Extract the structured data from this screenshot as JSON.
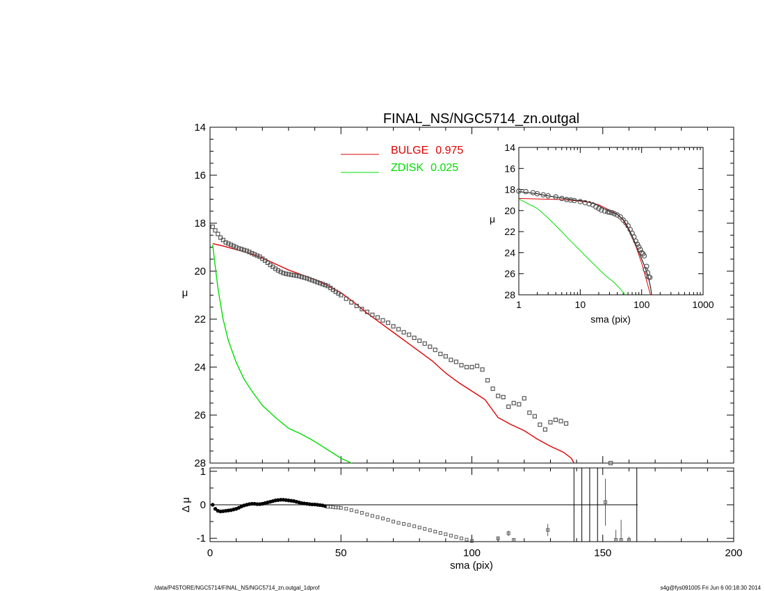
{
  "title": "FINAL_NS/NGC5714_zn.outgal",
  "footer": {
    "left": "/data/P4STORE/NGC5714/FINAL_NS/NGC5714_zn.outgal_1dprof",
    "right": "s4g@fys091005  Fri Jun  6 00:18:30 2014"
  },
  "colors": {
    "bulge": "#dd0000",
    "zdisk": "#00dd00",
    "data": "#555555",
    "axis": "#000000"
  },
  "chart_data": [
    {
      "panel": "main",
      "type": "line",
      "xlabel": "",
      "ylabel": "μ",
      "xlim": [
        0,
        200
      ],
      "ylim": [
        28,
        14
      ],
      "y_inverted": true,
      "yticks": [
        14,
        16,
        18,
        20,
        22,
        24,
        26,
        28
      ],
      "legend": {
        "placement": "top-center",
        "entries": [
          {
            "label": "BULGE",
            "value": "0.975",
            "color": "#dd0000"
          },
          {
            "label": "ZDISK",
            "value": "0.025",
            "color": "#00dd00"
          }
        ]
      },
      "series": [
        {
          "name": "BULGE",
          "color": "#dd0000",
          "style": "line",
          "x": [
            1,
            5,
            10,
            15,
            20,
            25,
            30,
            35,
            40,
            45,
            50,
            55,
            60,
            65,
            70,
            75,
            80,
            85,
            90,
            95,
            100,
            105,
            110,
            115,
            120,
            125,
            130,
            135,
            138,
            139
          ],
          "y": [
            18.85,
            18.95,
            19.1,
            19.25,
            19.45,
            19.7,
            19.95,
            20.15,
            20.35,
            20.6,
            20.9,
            21.3,
            21.75,
            22.15,
            22.55,
            22.95,
            23.35,
            23.75,
            24.25,
            24.65,
            25.0,
            25.35,
            26.1,
            26.4,
            26.65,
            27.0,
            27.3,
            27.55,
            27.8,
            28.0
          ]
        },
        {
          "name": "ZDISK",
          "color": "#00dd00",
          "style": "line",
          "x": [
            1,
            2,
            3,
            5,
            7,
            10,
            13,
            16,
            20,
            25,
            30,
            35,
            40,
            45,
            50,
            54
          ],
          "y": [
            18.9,
            19.8,
            20.7,
            22.0,
            22.9,
            23.8,
            24.5,
            25.0,
            25.6,
            26.1,
            26.55,
            26.8,
            27.1,
            27.45,
            27.8,
            28.0
          ]
        },
        {
          "name": "",
          "color": "#555555",
          "style": "markers",
          "x": [
            1,
            2,
            3,
            4,
            5,
            6,
            7,
            8,
            9,
            10,
            11,
            12,
            13,
            14,
            15,
            16,
            17,
            18,
            19,
            20,
            21,
            22,
            23,
            24,
            25,
            26,
            27,
            28,
            29,
            30,
            31,
            32,
            33,
            34,
            35,
            36,
            37,
            38,
            39,
            40,
            41,
            42,
            43,
            44,
            45,
            46,
            47,
            48,
            49,
            50,
            52,
            54,
            56,
            58,
            60,
            62,
            64,
            66,
            68,
            70,
            72,
            74,
            76,
            78,
            80,
            82,
            84,
            86,
            88,
            90,
            92,
            94,
            96,
            98,
            100,
            102,
            104,
            106,
            108,
            110,
            112,
            114,
            116,
            118,
            120,
            122,
            124,
            126,
            128,
            130,
            132,
            134,
            136,
            153
          ],
          "y": [
            18.15,
            18.3,
            18.45,
            18.6,
            18.7,
            18.8,
            18.85,
            18.9,
            18.95,
            19.0,
            19.05,
            19.08,
            19.12,
            19.15,
            19.2,
            19.25,
            19.3,
            19.35,
            19.4,
            19.48,
            19.56,
            19.65,
            19.74,
            19.82,
            19.9,
            19.97,
            20.03,
            20.08,
            20.11,
            20.13,
            20.15,
            20.17,
            20.19,
            20.21,
            20.24,
            20.27,
            20.3,
            20.34,
            20.38,
            20.42,
            20.46,
            20.5,
            20.54,
            20.58,
            20.62,
            20.7,
            20.78,
            20.86,
            20.93,
            21.0,
            21.15,
            21.3,
            21.45,
            21.58,
            21.7,
            21.82,
            21.93,
            22.05,
            22.15,
            22.3,
            22.42,
            22.55,
            22.65,
            22.78,
            22.9,
            23.02,
            23.15,
            23.28,
            23.45,
            23.55,
            23.7,
            23.78,
            23.92,
            24.0,
            24.0,
            23.95,
            24.1,
            24.55,
            24.9,
            25.2,
            25.25,
            25.65,
            25.5,
            25.55,
            25.3,
            25.9,
            26.05,
            26.4,
            26.6,
            26.3,
            26.2,
            26.25,
            26.35,
            28.0
          ]
        }
      ]
    },
    {
      "panel": "inset",
      "type": "line",
      "xlabel": "sma (pix)",
      "ylabel": "μ",
      "xscale": "log",
      "xlim": [
        1,
        1000
      ],
      "xticks": [
        1,
        10,
        100,
        1000
      ],
      "ylim": [
        28,
        14
      ],
      "y_inverted": true,
      "yticks": [
        14,
        16,
        18,
        20,
        22,
        24,
        26,
        28
      ],
      "series": [
        {
          "name": "BULGE",
          "color": "#dd0000",
          "style": "line",
          "x": [
            1,
            5,
            10,
            15,
            20,
            30,
            40,
            50,
            60,
            80,
            100,
            120,
            139
          ],
          "y": [
            18.85,
            18.95,
            19.1,
            19.25,
            19.45,
            19.95,
            20.35,
            20.9,
            21.75,
            23.35,
            25.0,
            26.65,
            28.0
          ]
        },
        {
          "name": "ZDISK",
          "color": "#00dd00",
          "style": "line",
          "x": [
            1,
            2,
            3,
            5,
            7,
            10,
            16,
            25,
            35,
            45,
            54
          ],
          "y": [
            18.9,
            19.8,
            20.7,
            22.0,
            22.9,
            23.8,
            25.0,
            26.1,
            26.8,
            27.45,
            28.0
          ]
        },
        {
          "name": "",
          "color": "#000000",
          "style": "line",
          "x": [
            1,
            2,
            3,
            5,
            8,
            12,
            18,
            25,
            30,
            40,
            50,
            60,
            70,
            80,
            90,
            100,
            110,
            120,
            130,
            140,
            145
          ],
          "y": [
            18.2,
            18.4,
            18.6,
            18.8,
            19.0,
            19.1,
            19.4,
            19.85,
            20.1,
            20.35,
            20.85,
            21.6,
            22.4,
            23.2,
            23.95,
            24.6,
            25.2,
            25.8,
            26.5,
            27.3,
            28.0
          ]
        },
        {
          "name": "",
          "color": "#555555",
          "style": "markers",
          "x": [
            1,
            1.3,
            1.7,
            2,
            2.5,
            3,
            4,
            5,
            6,
            7,
            8,
            10,
            12,
            14,
            16,
            18,
            20,
            22,
            25,
            28,
            30,
            33,
            36,
            40,
            45,
            50,
            55,
            60,
            65,
            70,
            75,
            80,
            85,
            90,
            95,
            100,
            105,
            110,
            115,
            120,
            125,
            130,
            136
          ],
          "y": [
            18.15,
            18.2,
            18.3,
            18.4,
            18.5,
            18.6,
            18.7,
            18.85,
            18.95,
            19.0,
            19.05,
            19.15,
            19.25,
            19.35,
            19.45,
            19.65,
            19.8,
            19.95,
            20.05,
            20.12,
            20.15,
            20.2,
            20.3,
            20.42,
            20.6,
            20.9,
            21.15,
            21.45,
            21.8,
            22.15,
            22.5,
            22.9,
            23.2,
            23.45,
            23.7,
            24.0,
            24.1,
            24.3,
            25.6,
            25.3,
            25.9,
            26.3,
            26.35
          ]
        }
      ]
    },
    {
      "panel": "residual",
      "type": "scatter",
      "xlabel": "sma (pix)",
      "ylabel": "Δ μ",
      "xlim": [
        0,
        200
      ],
      "xticks": [
        0,
        50,
        100,
        150,
        200
      ],
      "ylim": [
        -1.1,
        1.1
      ],
      "yticks": [
        -1,
        0,
        1
      ],
      "series": [
        {
          "name": "",
          "color": "#000000",
          "style": "markers",
          "x": [
            1,
            2,
            3,
            4,
            5,
            6,
            7,
            8,
            9,
            10,
            11,
            12,
            13,
            14,
            15,
            16,
            17,
            18,
            19,
            20,
            21,
            22,
            23,
            24,
            25,
            26,
            27,
            28,
            29,
            30,
            31,
            32,
            33,
            34,
            35,
            36,
            37,
            38,
            39,
            40,
            41,
            42,
            43,
            44,
            45,
            46,
            47,
            48,
            49,
            50,
            52,
            54,
            56,
            58,
            60,
            62,
            64,
            66,
            68,
            70,
            72,
            74,
            76,
            78,
            80,
            82,
            84,
            86,
            88,
            90,
            92,
            94,
            96,
            98,
            100
          ],
          "y": [
            0.0,
            -0.12,
            -0.18,
            -0.2,
            -0.19,
            -0.18,
            -0.17,
            -0.16,
            -0.14,
            -0.12,
            -0.09,
            -0.05,
            -0.02,
            0.0,
            0.02,
            0.03,
            0.03,
            0.02,
            0.02,
            0.03,
            0.05,
            0.07,
            0.09,
            0.11,
            0.13,
            0.14,
            0.15,
            0.15,
            0.14,
            0.13,
            0.12,
            0.11,
            0.09,
            0.07,
            0.05,
            0.04,
            0.03,
            0.02,
            0.01,
            0.01,
            0.0,
            -0.01,
            -0.02,
            -0.04,
            -0.06,
            -0.06,
            -0.07,
            -0.08,
            -0.08,
            -0.09,
            -0.12,
            -0.16,
            -0.2,
            -0.24,
            -0.29,
            -0.33,
            -0.37,
            -0.41,
            -0.45,
            -0.5,
            -0.54,
            -0.57,
            -0.6,
            -0.64,
            -0.68,
            -0.72,
            -0.76,
            -0.8,
            -0.84,
            -0.88,
            -0.92,
            -0.96,
            -1.0,
            -1.04,
            -1.08
          ]
        }
      ],
      "sparse_points": [
        {
          "x": 110,
          "y": -1.0,
          "err": 0.05
        },
        {
          "x": 114,
          "y": -0.85,
          "err": 0.08
        },
        {
          "x": 116,
          "y": -1.05,
          "err": 0.05
        },
        {
          "x": 129,
          "y": -0.75,
          "err": 0.18
        },
        {
          "x": 151,
          "y": 0.08,
          "err": 0.7
        },
        {
          "x": 155,
          "y": -1.05,
          "err": 0.3
        },
        {
          "x": 157,
          "y": -1.05,
          "err": 0.6
        },
        {
          "x": 160,
          "y": -1.05,
          "err": 0.1
        }
      ],
      "vertical_lines_x": [
        139,
        142,
        145,
        148,
        163
      ]
    }
  ]
}
